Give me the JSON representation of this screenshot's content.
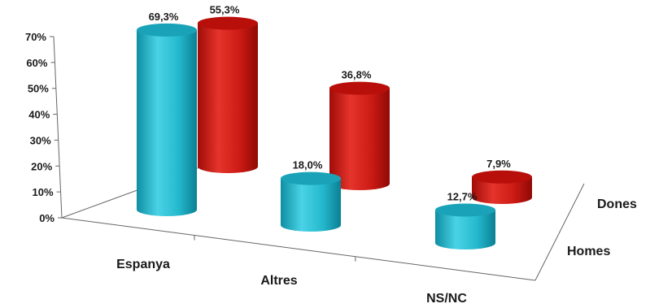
{
  "chart_data": {
    "type": "bar",
    "categories": [
      "Espanya",
      "Altres",
      "NS/NC"
    ],
    "series": [
      {
        "name": "Homes",
        "color": "#25BCD1",
        "values": [
          69.3,
          18.0,
          12.7
        ],
        "labels": [
          "69,3%",
          "18,0%",
          "12,7%"
        ]
      },
      {
        "name": "Dones",
        "color": "#D21A14",
        "values": [
          55.3,
          36.8,
          7.9
        ],
        "labels": [
          "55,3%",
          "36,8%",
          "7,9%"
        ]
      }
    ],
    "yticks": [
      "0%",
      "10%",
      "20%",
      "30%",
      "40%",
      "50%",
      "60%",
      "70%"
    ],
    "ylim": [
      0,
      70
    ],
    "bar_shape": "cylinder",
    "projection": "3d",
    "grid": false,
    "legend": "none"
  }
}
